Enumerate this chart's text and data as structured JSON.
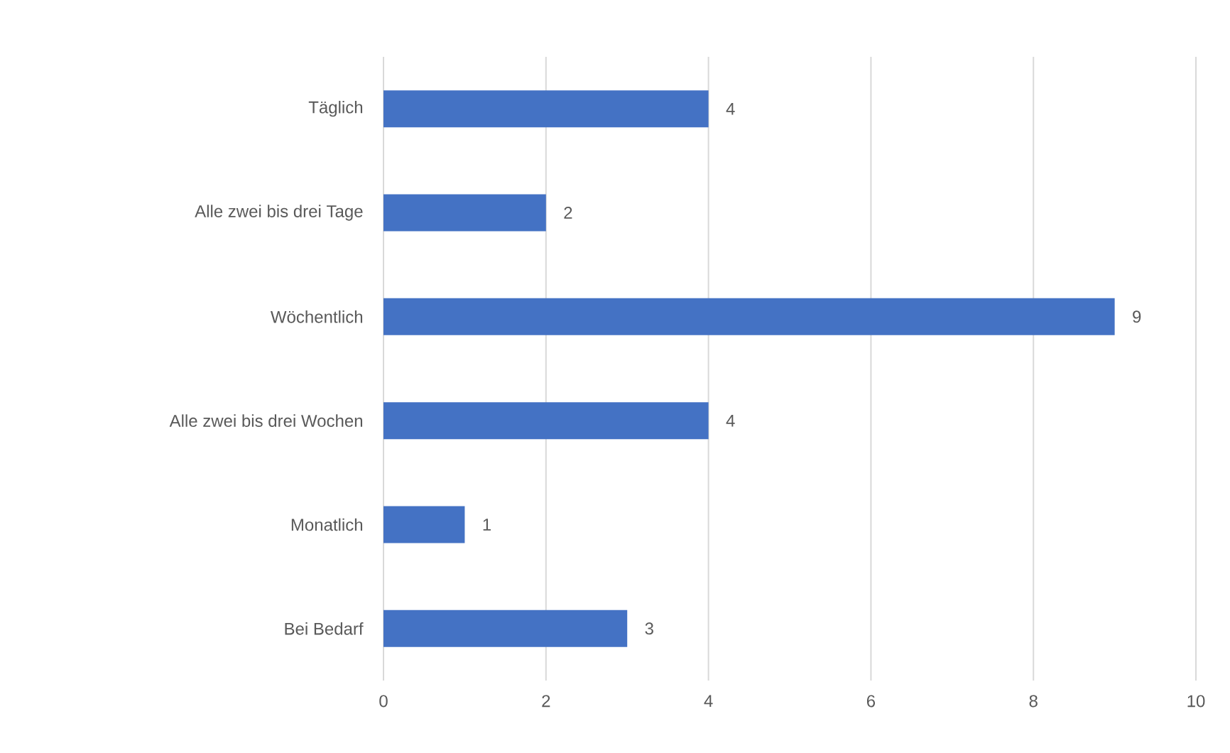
{
  "chart_data": {
    "type": "bar",
    "orientation": "horizontal",
    "categories": [
      "Täglich",
      "Alle zwei bis drei Tage",
      "Wöchentlich",
      "Alle zwei bis drei Wochen",
      "Monatlich",
      "Bei Bedarf"
    ],
    "values": [
      4,
      2,
      9,
      4,
      1,
      3
    ],
    "color": "#4472c4",
    "xlim": [
      0,
      10
    ],
    "xticks": [
      0,
      2,
      4,
      6,
      8,
      10
    ],
    "grid": "x",
    "data_labels": true
  }
}
